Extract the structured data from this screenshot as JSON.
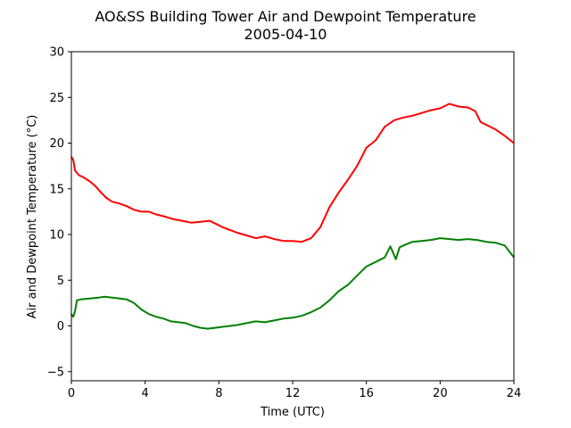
{
  "chart_data": {
    "type": "line",
    "title": "AO&SS Building Tower Air and Dewpoint Temperature",
    "subtitle": "2005-04-10",
    "xlabel": "Time (UTC)",
    "ylabel": "Air and Dewpoint Temperature (°C)",
    "xlim": [
      0,
      24
    ],
    "ylim": [
      -6,
      30
    ],
    "xticks": [
      0,
      4,
      8,
      12,
      16,
      20,
      24
    ],
    "yticks": [
      -5,
      0,
      5,
      10,
      15,
      20,
      25,
      30
    ],
    "grid": false,
    "legend": "none",
    "series": [
      {
        "color": "#ff0000",
        "x": [
          0,
          0.1,
          0.2,
          0.4,
          0.7,
          1.0,
          1.3,
          1.6,
          1.9,
          2.2,
          2.6,
          3.0,
          3.4,
          3.8,
          4.2,
          4.6,
          5.0,
          5.5,
          6.0,
          6.5,
          7.0,
          7.5,
          7.8,
          8.2,
          8.6,
          9.0,
          9.5,
          10.0,
          10.5,
          11.0,
          11.5,
          12.0,
          12.5,
          13.0,
          13.5,
          14.0,
          14.5,
          15.0,
          15.5,
          16.0,
          16.5,
          17.0,
          17.5,
          18.0,
          18.5,
          19.0,
          19.5,
          20.0,
          20.5,
          21.0,
          21.5,
          21.9,
          22.2,
          22.6,
          23.0,
          23.5,
          24.0
        ],
        "y": [
          18.5,
          18.2,
          17.0,
          16.5,
          16.2,
          15.8,
          15.3,
          14.6,
          14.0,
          13.6,
          13.4,
          13.1,
          12.7,
          12.5,
          12.5,
          12.2,
          12.0,
          11.7,
          11.5,
          11.3,
          11.4,
          11.5,
          11.2,
          10.8,
          10.5,
          10.2,
          9.9,
          9.6,
          9.8,
          9.5,
          9.3,
          9.3,
          9.2,
          9.6,
          10.8,
          13.0,
          14.6,
          16.0,
          17.5,
          19.5,
          20.3,
          21.8,
          22.5,
          22.8,
          23.0,
          23.3,
          23.6,
          23.8,
          24.3,
          24.0,
          23.9,
          23.5,
          22.3,
          21.9,
          21.5,
          20.8,
          20.0
        ]
      },
      {
        "color": "#008000",
        "x": [
          0,
          0.1,
          0.2,
          0.3,
          0.5,
          1.0,
          1.5,
          1.8,
          2.2,
          2.6,
          3.0,
          3.4,
          3.8,
          4.2,
          4.6,
          5.0,
          5.4,
          5.8,
          6.2,
          6.6,
          7.0,
          7.4,
          7.8,
          8.2,
          8.6,
          9.0,
          9.5,
          10.0,
          10.5,
          11.0,
          11.5,
          12.0,
          12.5,
          13.0,
          13.5,
          14.0,
          14.5,
          15.0,
          15.5,
          16.0,
          16.5,
          17.0,
          17.3,
          17.6,
          17.8,
          18.0,
          18.5,
          19.0,
          19.5,
          20.0,
          20.5,
          21.0,
          21.5,
          22.0,
          22.5,
          23.0,
          23.5,
          24.0
        ],
        "y": [
          1.3,
          1.0,
          1.6,
          2.8,
          2.9,
          3.0,
          3.1,
          3.2,
          3.1,
          3.0,
          2.9,
          2.5,
          1.8,
          1.3,
          1.0,
          0.8,
          0.5,
          0.4,
          0.3,
          0.0,
          -0.2,
          -0.3,
          -0.2,
          -0.1,
          0.0,
          0.1,
          0.3,
          0.5,
          0.4,
          0.6,
          0.8,
          0.9,
          1.1,
          1.5,
          2.0,
          2.8,
          3.8,
          4.5,
          5.5,
          6.5,
          7.0,
          7.5,
          8.7,
          7.3,
          8.6,
          8.8,
          9.2,
          9.3,
          9.4,
          9.6,
          9.5,
          9.4,
          9.5,
          9.4,
          9.2,
          9.1,
          8.8,
          7.5
        ]
      }
    ]
  }
}
